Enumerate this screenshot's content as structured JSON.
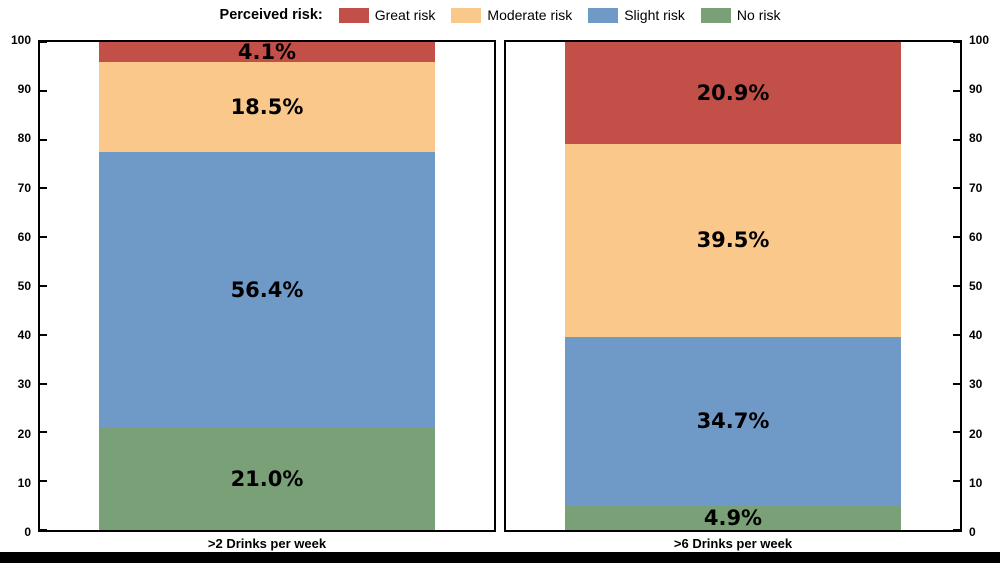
{
  "legend": {
    "title": "Perceived risk:"
  },
  "chart_data": {
    "type": "bar",
    "stacked": true,
    "orientation": "vertical",
    "categories": [
      ">2 Drinks per week",
      ">6 Drinks per week"
    ],
    "series": [
      {
        "name": "Great risk",
        "color": "#c25049",
        "values": [
          4.1,
          20.9
        ]
      },
      {
        "name": "Moderate risk",
        "color": "#fbc88b",
        "values": [
          18.5,
          39.5
        ]
      },
      {
        "name": "Slight risk",
        "color": "#6f99c7",
        "values": [
          56.4,
          34.7
        ]
      },
      {
        "name": "No risk",
        "color": "#7aa077",
        "values": [
          21.0,
          4.9
        ]
      }
    ],
    "ylim": [
      0,
      100
    ],
    "yticks": [
      0,
      10,
      20,
      30,
      40,
      50,
      60,
      70,
      80,
      90,
      100
    ],
    "value_label_format": "percent",
    "legend_position": "top",
    "grid": false
  }
}
